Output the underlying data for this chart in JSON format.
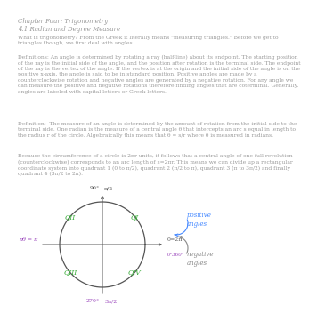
{
  "title_line1": "Chapter Four: Trigonometry",
  "title_line2": "4.1 Radian and Degree Measure",
  "para1": "What is trigonometry? From the Greek it literally means \"measuring triangles.\" Before we get to\ntriangles though, we first deal with angles.",
  "para2": "Definitions: An angle is determined by rotating a ray (half-line) about its endpoint. The starting position\nof the ray is the initial side of the angle, and the position after rotation is the terminal side. The endpoint\nof the ray is the vertex of the angle. If the vertex is at the origin and the initial side of the angle is on the\npositive x-axis, the angle is said to be in standard position. Positive angles are made by a\ncounterclockwise rotation and negative angles are generated by a negative rotation. For any angle we\ncan measure the positive and negative rotations therefore finding angles that are coterminal. Generally,\nangles are labeled with capital letters or Greek letters.",
  "para3": "Definition:  The measure of an angle is determined by the amount of rotation from the initial side to the\nterminal side. One radian is the measure of a central angle θ that intercepts an arc s equal in length to\nthe radius r of the circle. Algebraically this means that θ = s/r where θ is measured in radians.",
  "para4": "Because the circumference of a circle is 2πr units, it follows that a central angle of one full revolution\n(counterclockwise) corresponds to an arc length of s=2πr. This means we can divide up a rectangular\ncoordinate system into quadrant 1 (0 to π/2), quadrant 2 (π/2 to π), quadrant 3 (π to 3π/2) and finally\nquadrant 4 (3π/2 to 2π).",
  "bg_color": "#ffffff",
  "text_color": "#999999",
  "circle_color": "#555555",
  "axis_color": "#555555",
  "green_color": "#33aa33",
  "purple_color": "#9944bb",
  "blue_color": "#4488ff",
  "dark_color": "#555555",
  "top_label_color": "#555555",
  "right_label_color": "#555555",
  "pos_text_color": "#4488ff",
  "neg_text_color": "#888888"
}
